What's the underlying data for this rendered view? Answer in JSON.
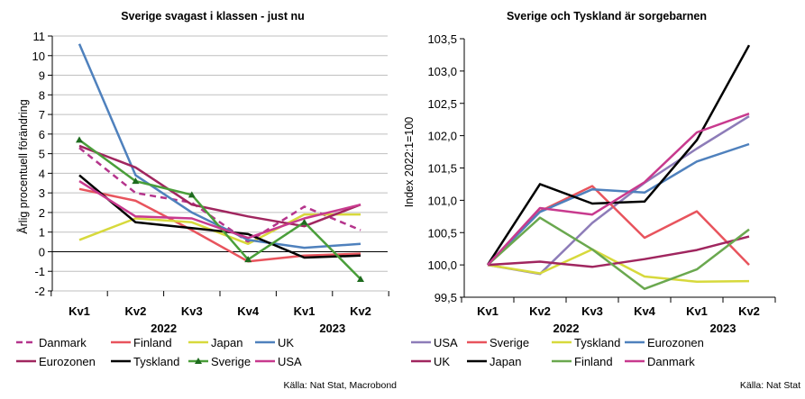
{
  "charts": [
    {
      "title": "Sverige svagast i klassen - just nu",
      "ylabel": "Årlig procentuell förändring",
      "ylim": [
        -2,
        11
      ],
      "ystep": 1,
      "categories": [
        "Kv1",
        "Kv2",
        "Kv3",
        "Kv4",
        "Kv1",
        "Kv2"
      ],
      "years": [
        {
          "label": "2022",
          "at": 1.5
        },
        {
          "label": "2023",
          "at": 4.5
        }
      ],
      "source": "Källa: Nat Stat, Macrobond",
      "grid": true,
      "series": [
        {
          "name": "Danmark",
          "color": "#b5348c",
          "dash": true,
          "values": [
            5.3,
            3.0,
            2.5,
            0.5,
            2.3,
            1.1
          ]
        },
        {
          "name": "Finland",
          "color": "#e8545d",
          "values": [
            3.2,
            2.6,
            1.1,
            -0.5,
            -0.2,
            -0.1
          ]
        },
        {
          "name": "Japan",
          "color": "#d7d93c",
          "values": [
            0.6,
            1.7,
            1.5,
            0.4,
            1.9,
            1.9
          ]
        },
        {
          "name": "UK",
          "color": "#4f81bd",
          "values": [
            10.6,
            3.9,
            2.0,
            0.6,
            0.2,
            0.4
          ]
        },
        {
          "name": "Eurozonen",
          "color": "#a0265f",
          "values": [
            5.4,
            4.3,
            2.4,
            1.8,
            1.3,
            2.4
          ]
        },
        {
          "name": "Tyskland",
          "color": "#000000",
          "values": [
            3.9,
            1.5,
            1.2,
            0.9,
            -0.3,
            -0.2
          ]
        },
        {
          "name": "Sverige",
          "color": "#4a9e3a",
          "marker": true,
          "values": [
            5.7,
            3.6,
            2.9,
            -0.4,
            1.5,
            -1.4
          ]
        },
        {
          "name": "USA",
          "color": "#c83a8e",
          "values": [
            3.6,
            1.8,
            1.7,
            0.7,
            1.7,
            2.4
          ]
        }
      ]
    },
    {
      "title": "Sverige och Tyskland är sorgebarnen",
      "ylabel": "Index 2022:1=100",
      "ylim": [
        99.5,
        103.5
      ],
      "ystep": 0.5,
      "categories": [
        "Kv1",
        "Kv2",
        "Kv3",
        "Kv4",
        "Kv1",
        "Kv2"
      ],
      "years": [
        {
          "label": "2022",
          "at": 1.5
        },
        {
          "label": "2023",
          "at": 4.5
        }
      ],
      "source": "Källa: Nat Stat",
      "grid": false,
      "series": [
        {
          "name": "USA",
          "color": "#8d7cb8",
          "values": [
            100.0,
            99.86,
            100.65,
            101.27,
            101.8,
            102.3
          ]
        },
        {
          "name": "Sverige",
          "color": "#e8545d",
          "values": [
            100.0,
            100.83,
            101.22,
            100.42,
            100.83,
            100.0
          ]
        },
        {
          "name": "Tyskland",
          "color": "#d7d93c",
          "values": [
            100.0,
            99.87,
            100.24,
            99.82,
            99.74,
            99.75
          ]
        },
        {
          "name": "Eurozonen",
          "color": "#4f81bd",
          "values": [
            100.0,
            100.82,
            101.17,
            101.12,
            101.6,
            101.87
          ]
        },
        {
          "name": "UK",
          "color": "#a0265f",
          "values": [
            100.0,
            100.05,
            99.97,
            100.09,
            100.23,
            100.44
          ]
        },
        {
          "name": "Japan",
          "color": "#000000",
          "values": [
            100.0,
            101.25,
            100.95,
            100.98,
            101.93,
            103.4
          ]
        },
        {
          "name": "Finland",
          "color": "#6aa84f",
          "values": [
            100.0,
            100.73,
            100.24,
            99.63,
            99.93,
            100.55
          ]
        },
        {
          "name": "Danmark",
          "color": "#c83a8e",
          "values": [
            100.0,
            100.88,
            100.78,
            101.28,
            102.05,
            102.34
          ]
        }
      ]
    }
  ]
}
